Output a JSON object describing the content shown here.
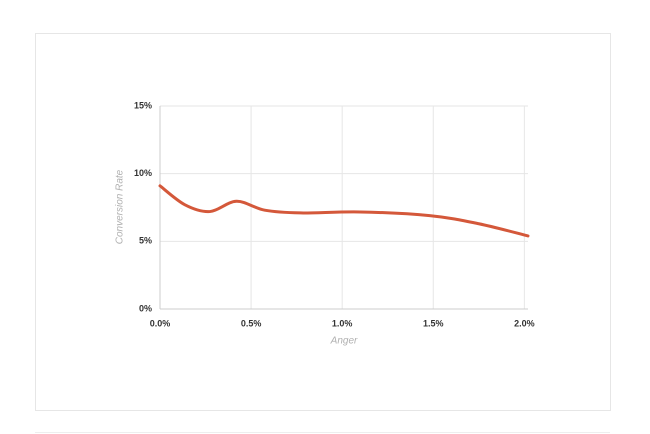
{
  "chart_data": {
    "type": "line",
    "x_label": "Anger",
    "y_label": "Conversion Rate",
    "x": [
      0,
      0.137,
      0.274,
      0.42,
      0.575,
      0.77,
      1.1,
      1.48,
      1.75,
      2.02
    ],
    "series": [
      {
        "color": "#d4583a",
        "values": [
          9.1,
          7.7,
          7.2,
          7.96,
          7.3,
          7.1,
          7.17,
          6.9,
          6.3,
          5.4
        ]
      }
    ],
    "xlim": [
      0,
      2.02
    ],
    "ylim": [
      0,
      15
    ],
    "xticks": [
      {
        "value": 0,
        "label": "0.0%"
      },
      {
        "value": 0.5,
        "label": "0.5%"
      },
      {
        "value": 1,
        "label": "1.0%"
      },
      {
        "value": 1.5,
        "label": "1.5%"
      },
      {
        "value": 2,
        "label": "2.0%"
      }
    ],
    "yticks": [
      {
        "value": 0,
        "label": "0%"
      },
      {
        "value": 5,
        "label": "5%"
      },
      {
        "value": 10,
        "label": "10%"
      },
      {
        "value": 15,
        "label": "15%"
      }
    ],
    "grid": true
  }
}
